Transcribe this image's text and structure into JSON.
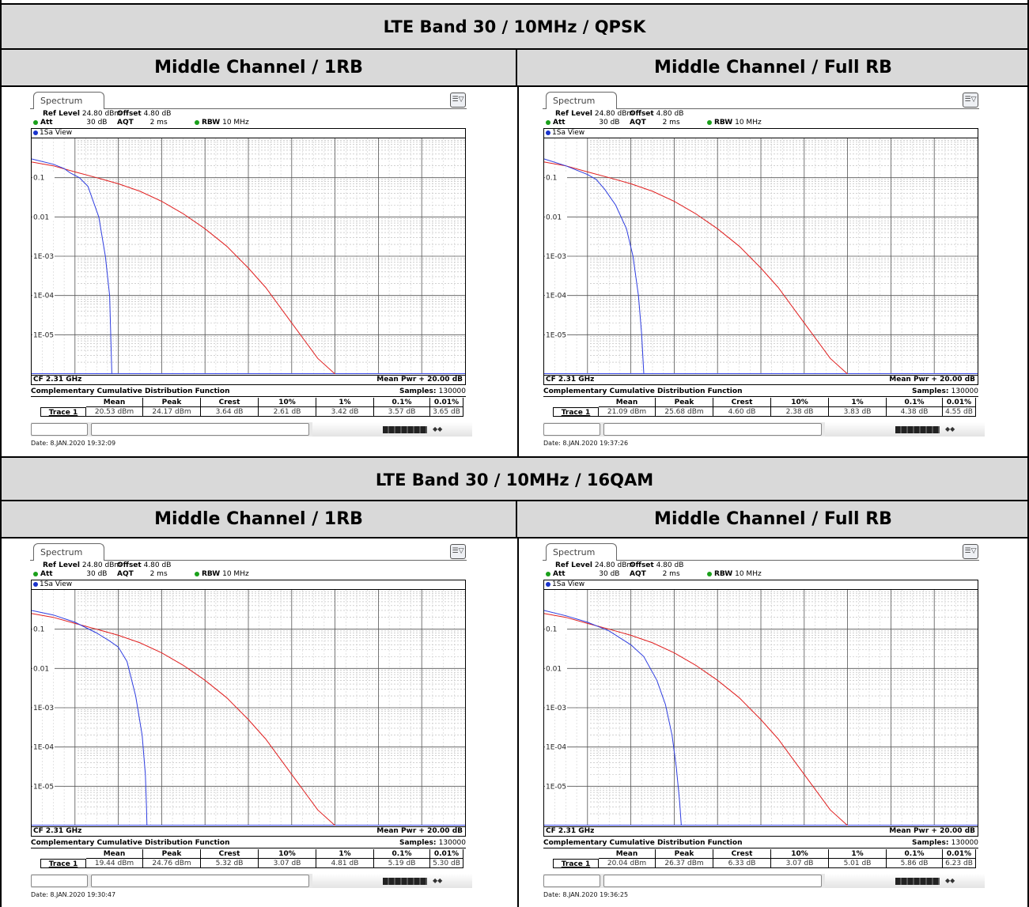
{
  "sections": [
    {
      "title": "LTE Band 30 ∕ 10MHz / QPSK",
      "columns": [
        "Middle Channel / 1RB",
        "Middle Channel / Full RB"
      ],
      "panels": [
        {
          "tab": "Spectrum",
          "ref_level_label": "Ref Level",
          "ref_level": "24.80 dBm",
          "offset_label": "Offset",
          "offset": "4.80 dB",
          "att_label": "Att",
          "att": "30 dB",
          "aqt_label": "AQT",
          "aqt": "2 ms",
          "rbw_label": "RBW",
          "rbw": "10 MHz",
          "view": "1Sa View",
          "cf": "CF 2.31 GHz",
          "mean_pwr": "Mean Pwr + 20.00 dB",
          "ccdf_title": "Complementary Cumulative Distribution Function",
          "samples_label": "Samples:",
          "samples": "130000",
          "trace_label": "Trace 1",
          "stat_headers": [
            "Mean",
            "Peak",
            "Crest",
            "10%",
            "1%",
            "0.1%",
            "0.01%"
          ],
          "stat_values": [
            "20.53 dBm",
            "24.17 dBm",
            "3.64 dB",
            "2.61 dB",
            "3.42 dB",
            "3.57 dB",
            "3.65 dB"
          ],
          "date": "Date: 8.JAN.2020  19:32:09"
        },
        {
          "tab": "Spectrum",
          "ref_level_label": "Ref Level",
          "ref_level": "24.80 dBm",
          "offset_label": "Offset",
          "offset": "4.80 dB",
          "att_label": "Att",
          "att": "30 dB",
          "aqt_label": "AQT",
          "aqt": "2 ms",
          "rbw_label": "RBW",
          "rbw": "10 MHz",
          "view": "1Sa View",
          "cf": "CF 2.31 GHz",
          "mean_pwr": "Mean Pwr + 20.00 dB",
          "ccdf_title": "Complementary Cumulative Distribution Function",
          "samples_label": "Samples:",
          "samples": "130000",
          "trace_label": "Trace 1",
          "stat_headers": [
            "Mean",
            "Peak",
            "Crest",
            "10%",
            "1%",
            "0.1%",
            "0.01%"
          ],
          "stat_values": [
            "21.09 dBm",
            "25.68 dBm",
            "4.60 dB",
            "2.38 dB",
            "3.83 dB",
            "4.38 dB",
            "4.55 dB"
          ],
          "date": "Date: 8.JAN.2020  19:37:26"
        }
      ]
    },
    {
      "title": "LTE Band 30 ∕ 10MHz / 16QAM",
      "columns": [
        "Middle Channel / 1RB",
        "Middle Channel / Full RB"
      ],
      "panels": [
        {
          "tab": "Spectrum",
          "ref_level_label": "Ref Level",
          "ref_level": "24.80 dBm",
          "offset_label": "Offset",
          "offset": "4.80 dB",
          "att_label": "Att",
          "att": "30 dB",
          "aqt_label": "AQT",
          "aqt": "2 ms",
          "rbw_label": "RBW",
          "rbw": "10 MHz",
          "view": "1Sa View",
          "cf": "CF 2.31 GHz",
          "mean_pwr": "Mean Pwr + 20.00 dB",
          "ccdf_title": "Complementary Cumulative Distribution Function",
          "samples_label": "Samples:",
          "samples": "130000",
          "trace_label": "Trace 1",
          "stat_headers": [
            "Mean",
            "Peak",
            "Crest",
            "10%",
            "1%",
            "0.1%",
            "0.01%"
          ],
          "stat_values": [
            "19.44 dBm",
            "24.76 dBm",
            "5.32 dB",
            "3.07 dB",
            "4.81 dB",
            "5.19 dB",
            "5.30 dB"
          ],
          "date": "Date: 8.JAN.2020  19:30:47"
        },
        {
          "tab": "Spectrum",
          "ref_level_label": "Ref Level",
          "ref_level": "24.80 dBm",
          "offset_label": "Offset",
          "offset": "4.80 dB",
          "att_label": "Att",
          "att": "30 dB",
          "aqt_label": "AQT",
          "aqt": "2 ms",
          "rbw_label": "RBW",
          "rbw": "10 MHz",
          "view": "1Sa View",
          "cf": "CF 2.31 GHz",
          "mean_pwr": "Mean Pwr + 20.00 dB",
          "ccdf_title": "Complementary Cumulative Distribution Function",
          "samples_label": "Samples:",
          "samples": "130000",
          "trace_label": "Trace 1",
          "stat_headers": [
            "Mean",
            "Peak",
            "Crest",
            "10%",
            "1%",
            "0.1%",
            "0.01%"
          ],
          "stat_values": [
            "20.04 dBm",
            "26.37 dBm",
            "6.33 dB",
            "3.07 dB",
            "5.01 dB",
            "5.86 dB",
            "6.23 dB"
          ],
          "date": "Date: 8.JAN.2020  19:36:25"
        }
      ]
    }
  ],
  "colors": {
    "trace": "#2f3ee0",
    "reference": "#e02020",
    "header_bg": "#d9d9d9"
  },
  "chart_data": [
    {
      "type": "line",
      "scale_y": "log",
      "x_range_db": [
        0,
        20
      ],
      "ylim": [
        1e-06,
        1
      ],
      "y_tick_labels": [
        "0.1",
        "0.01",
        "1E-03",
        "1E-04",
        "1E-05"
      ],
      "series": [
        {
          "x": [
            0,
            1,
            1.5,
            1.8,
            2.2,
            2.6,
            3.1,
            3.4,
            3.6,
            3.65,
            3.7
          ],
          "y": [
            0.3,
            0.22,
            0.17,
            0.13,
            0.1,
            0.06,
            0.01,
            0.001,
            0.0001,
            1e-05,
            1e-06
          ]
        },
        {
          "x": [
            0,
            1,
            2,
            3,
            4,
            5,
            6,
            7,
            8,
            9,
            10,
            10.8,
            11.6,
            12.4,
            13.2,
            14
          ],
          "y": [
            0.25,
            0.2,
            0.14,
            0.1,
            0.07,
            0.045,
            0.025,
            0.012,
            0.005,
            0.0018,
            0.0005,
            0.00016,
            4e-05,
            1e-05,
            2.5e-06,
            1e-06
          ]
        }
      ]
    },
    {
      "type": "line",
      "scale_y": "log",
      "x_range_db": [
        0,
        20
      ],
      "ylim": [
        1e-06,
        1
      ],
      "y_tick_labels": [
        "0.1",
        "0.01",
        "1E-03",
        "1E-04",
        "1E-05"
      ],
      "series": [
        {
          "x": [
            0,
            1,
            2,
            2.4,
            2.8,
            3.3,
            3.8,
            4.1,
            4.35,
            4.5,
            4.55,
            4.6
          ],
          "y": [
            0.3,
            0.2,
            0.12,
            0.09,
            0.05,
            0.02,
            0.005,
            0.001,
            0.0001,
            1e-05,
            3e-06,
            1e-06
          ]
        },
        {
          "x": [
            0,
            1,
            2,
            3,
            4,
            5,
            6,
            7,
            8,
            9,
            10,
            10.8,
            11.6,
            12.4,
            13.2,
            14
          ],
          "y": [
            0.25,
            0.2,
            0.14,
            0.1,
            0.07,
            0.045,
            0.025,
            0.012,
            0.005,
            0.0018,
            0.0005,
            0.00016,
            4e-05,
            1e-05,
            2.5e-06,
            1e-06
          ]
        }
      ]
    },
    {
      "type": "line",
      "scale_y": "log",
      "x_range_db": [
        0,
        20
      ],
      "ylim": [
        1e-06,
        1
      ],
      "y_tick_labels": [
        "0.1",
        "0.01",
        "1E-03",
        "1E-04",
        "1E-05"
      ],
      "series": [
        {
          "x": [
            0,
            1,
            2,
            3,
            3.6,
            4,
            4.4,
            4.8,
            5.1,
            5.25,
            5.3,
            5.32
          ],
          "y": [
            0.3,
            0.23,
            0.15,
            0.08,
            0.05,
            0.035,
            0.015,
            0.002,
            0.0002,
            2e-05,
            3e-06,
            1e-06
          ]
        },
        {
          "x": [
            0,
            1,
            2,
            3,
            4,
            5,
            6,
            7,
            8,
            9,
            10,
            10.8,
            11.6,
            12.4,
            13.2,
            14
          ],
          "y": [
            0.25,
            0.2,
            0.14,
            0.1,
            0.07,
            0.045,
            0.025,
            0.012,
            0.005,
            0.0018,
            0.0005,
            0.00016,
            4e-05,
            1e-05,
            2.5e-06,
            1e-06
          ]
        }
      ]
    },
    {
      "type": "line",
      "scale_y": "log",
      "x_range_db": [
        0,
        20
      ],
      "ylim": [
        1e-06,
        1
      ],
      "y_tick_labels": [
        "0.1",
        "0.01",
        "1E-03",
        "1E-04",
        "1E-05"
      ],
      "series": [
        {
          "x": [
            0,
            1,
            2,
            3,
            4,
            4.6,
            5.2,
            5.6,
            5.9,
            6.1,
            6.25,
            6.33
          ],
          "y": [
            0.3,
            0.22,
            0.15,
            0.09,
            0.04,
            0.02,
            0.005,
            0.0012,
            0.0002,
            3e-05,
            4e-06,
            1e-06
          ]
        },
        {
          "x": [
            0,
            1,
            2,
            3,
            4,
            5,
            6,
            7,
            8,
            9,
            10,
            10.8,
            11.6,
            12.4,
            13.2,
            14
          ],
          "y": [
            0.25,
            0.2,
            0.14,
            0.1,
            0.07,
            0.045,
            0.025,
            0.012,
            0.005,
            0.0018,
            0.0005,
            0.00016,
            4e-05,
            1e-05,
            2.5e-06,
            1e-06
          ]
        }
      ]
    }
  ]
}
